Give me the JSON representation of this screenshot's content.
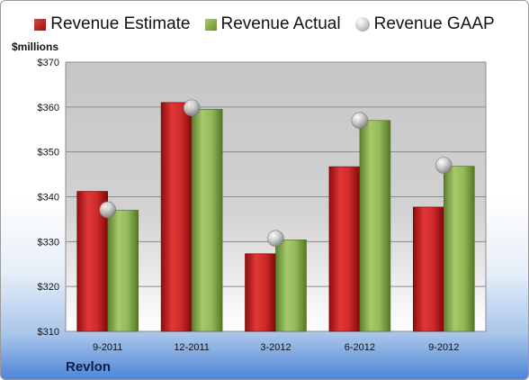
{
  "legend": {
    "estimate": "Revenue Estimate",
    "actual": "Revenue Actual",
    "gaap": "Revenue GAAP"
  },
  "unit_label": "$millions",
  "company": "Revlon",
  "colors": {
    "estimate": "#c41e1e",
    "actual": "#8db254",
    "gaap": "#c8c8c8",
    "plot_background_top": "#c8c8c8",
    "plot_background_bottom": "#ffffff"
  },
  "chart_data": {
    "type": "bar",
    "categories": [
      "9-2011",
      "12-2011",
      "3-2012",
      "6-2012",
      "9-2012"
    ],
    "series": [
      {
        "name": "Revenue Estimate",
        "kind": "bar",
        "values": [
          341.2,
          361.0,
          327.3,
          346.7,
          337.7
        ]
      },
      {
        "name": "Revenue Actual",
        "kind": "bar",
        "values": [
          337.0,
          359.5,
          330.4,
          357.0,
          346.8
        ]
      },
      {
        "name": "Revenue GAAP",
        "kind": "marker",
        "values": [
          337.1,
          359.8,
          330.7,
          357.0,
          347.0
        ]
      }
    ],
    "ylim": [
      310,
      370
    ],
    "yticks": [
      310,
      320,
      330,
      340,
      350,
      360,
      370
    ],
    "ytick_labels": [
      "$310",
      "$320",
      "$330",
      "$340",
      "$350",
      "$360",
      "$370"
    ],
    "grid": true,
    "legend_position": "top",
    "ylabel": "$millions"
  }
}
